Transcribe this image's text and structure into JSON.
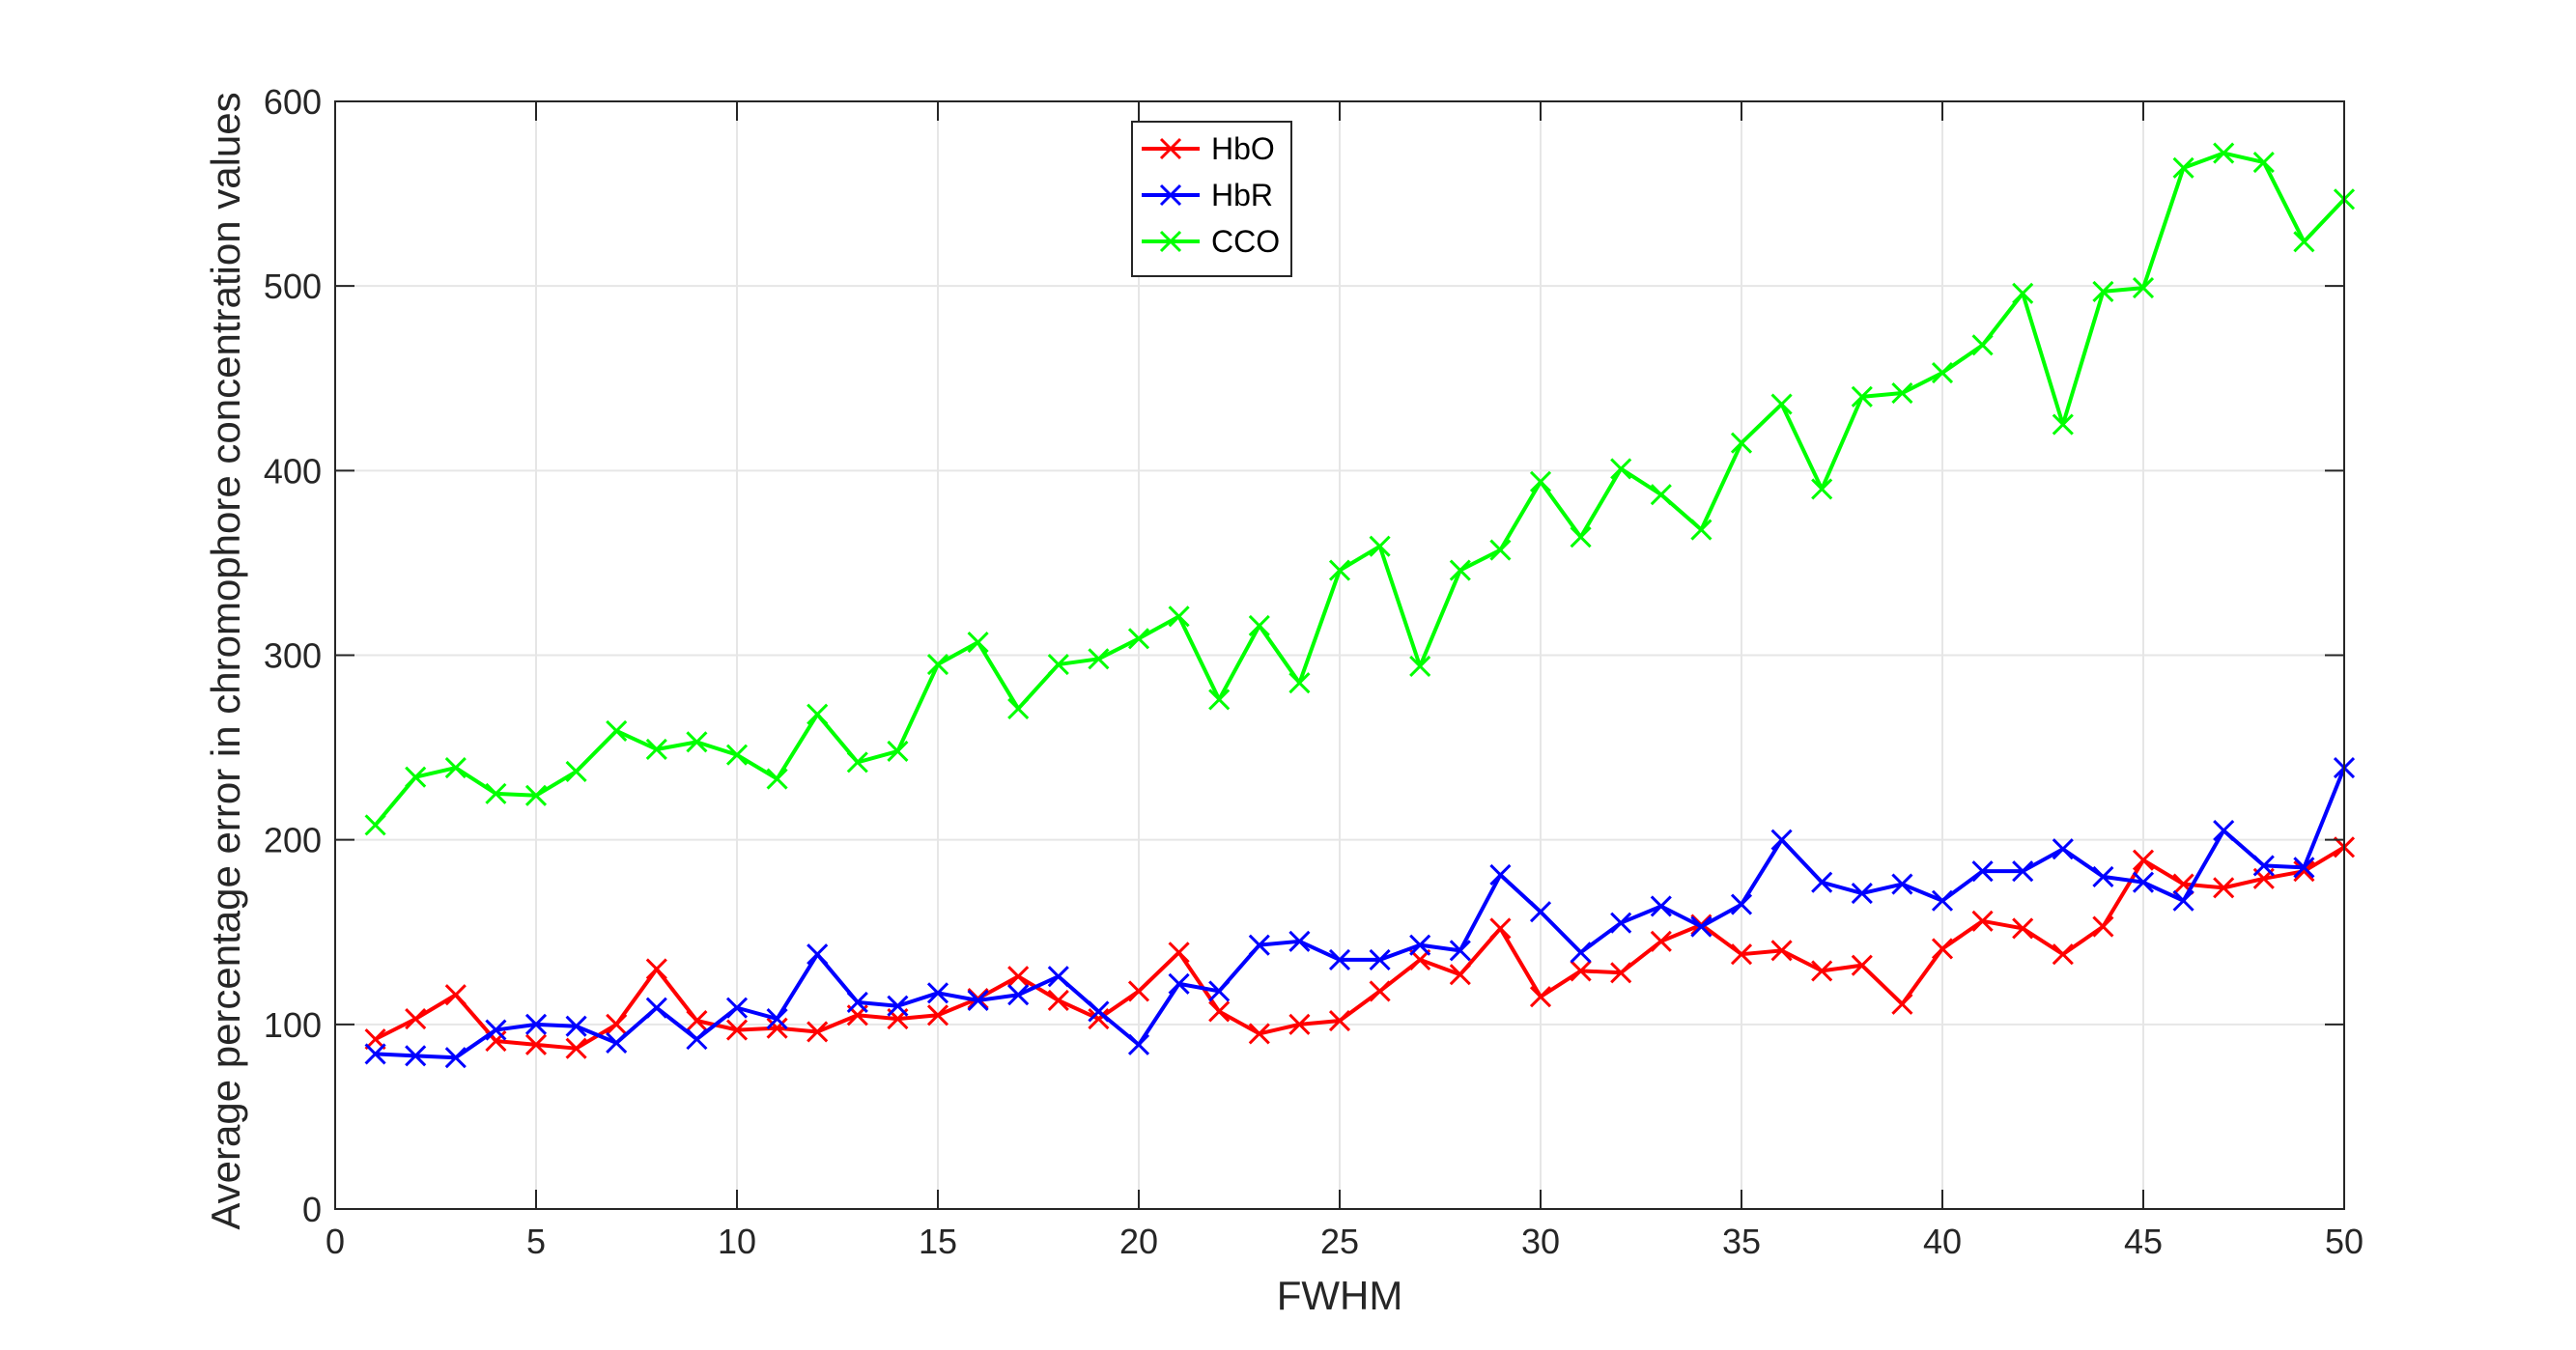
{
  "chart_data": {
    "type": "line",
    "xlabel": "FWHM",
    "ylabel": "Average percentage error in chromophore concentration values",
    "xlim": [
      0,
      50
    ],
    "ylim": [
      0,
      600
    ],
    "xticks": [
      0,
      5,
      10,
      15,
      20,
      25,
      30,
      35,
      40,
      45,
      50
    ],
    "yticks": [
      0,
      100,
      200,
      300,
      400,
      500,
      600
    ],
    "grid": true,
    "legend_position": "top-center",
    "marker": "x",
    "x": [
      1,
      2,
      3,
      4,
      5,
      6,
      7,
      8,
      9,
      10,
      11,
      12,
      13,
      14,
      15,
      16,
      17,
      18,
      19,
      20,
      21,
      22,
      23,
      24,
      25,
      26,
      27,
      28,
      29,
      30,
      31,
      32,
      33,
      34,
      35,
      36,
      37,
      38,
      39,
      40,
      41,
      42,
      43,
      44,
      45,
      46,
      47,
      48,
      49,
      50
    ],
    "series": [
      {
        "name": "HbO",
        "color": "#ff0000",
        "values": [
          92,
          103,
          116,
          91,
          89,
          87,
          100,
          130,
          102,
          97,
          98,
          96,
          105,
          103,
          105,
          114,
          126,
          113,
          103,
          118,
          139,
          107,
          95,
          100,
          102,
          118,
          135,
          127,
          152,
          115,
          129,
          128,
          145,
          154,
          138,
          140,
          129,
          132,
          111,
          141,
          156,
          152,
          138,
          153,
          189,
          176,
          174,
          179,
          183,
          196
        ]
      },
      {
        "name": "HbR",
        "color": "#0000ff",
        "values": [
          84,
          83,
          82,
          97,
          100,
          99,
          90,
          109,
          92,
          109,
          103,
          138,
          112,
          110,
          117,
          113,
          116,
          126,
          107,
          89,
          122,
          118,
          143,
          145,
          135,
          135,
          143,
          140,
          181,
          161,
          139,
          155,
          164,
          153,
          165,
          200,
          177,
          171,
          176,
          167,
          183,
          183,
          195,
          180,
          177,
          167,
          205,
          186,
          185,
          239
        ]
      },
      {
        "name": "CCO",
        "color": "#00ff00",
        "values": [
          208,
          234,
          239,
          225,
          224,
          237,
          259,
          249,
          253,
          246,
          233,
          268,
          242,
          248,
          295,
          307,
          271,
          295,
          298,
          309,
          321,
          276,
          316,
          285,
          346,
          359,
          294,
          346,
          357,
          394,
          364,
          401,
          387,
          368,
          415,
          436,
          390,
          440,
          442,
          453,
          468,
          496,
          425,
          497,
          499,
          564,
          572,
          567,
          524,
          547
        ]
      }
    ]
  }
}
